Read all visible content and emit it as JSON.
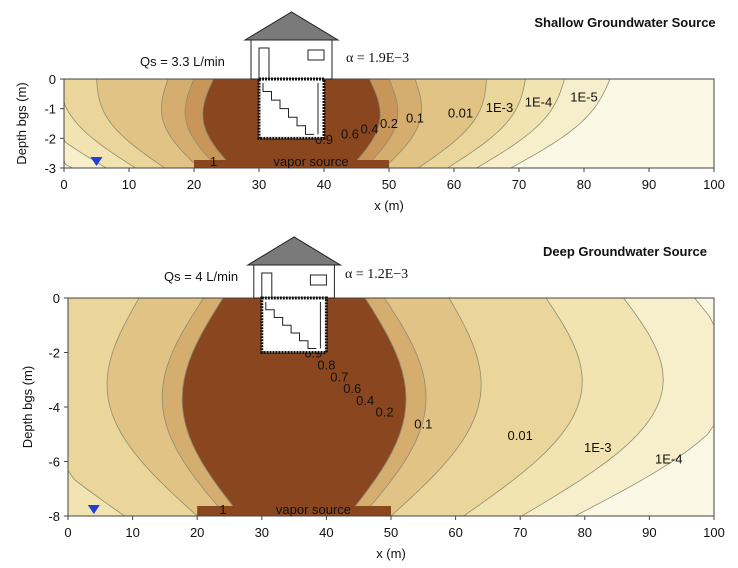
{
  "colors": {
    "ramp": [
      "#fbf8e6",
      "#f7efcb",
      "#f2e4b2",
      "#ead59a",
      "#e1c385",
      "#d5ad6e",
      "#c9965a",
      "#bb8048",
      "#ab6b38",
      "#985429",
      "#8a471f"
    ],
    "contour_line": "#8d8d72",
    "house_stroke": "#222222",
    "roof": "#7a7a7a",
    "water_table": "#1f3fd6"
  },
  "icons": [
    "house-icon",
    "water-table-triangle-icon"
  ],
  "chart_data": [
    {
      "type": "contour",
      "title": "Shallow Groundwater Source",
      "xlabel": "x (m)",
      "ylabel": "Depth bgs (m)",
      "xlim": [
        0,
        100
      ],
      "ylim": [
        -3,
        0
      ],
      "xticks": [
        "0",
        "10",
        "20",
        "30",
        "40",
        "50",
        "60",
        "70",
        "80",
        "90",
        "100"
      ],
      "yticks": [
        "0",
        "-1",
        "-2",
        "-3"
      ],
      "annotations": {
        "qs": "Qs = 3.3 L/min",
        "alpha": "α = 1.9E−3",
        "source": "vapor source"
      },
      "source_x": [
        20,
        50
      ],
      "source_depth": -3,
      "water_table_x": 5,
      "building_x": [
        30,
        40
      ],
      "foundation_depth": -2,
      "contour_levels": [
        {
          "label": "1E-5",
          "x": 80
        },
        {
          "label": "1E-4",
          "x": 73
        },
        {
          "label": "1E-3",
          "x": 67
        },
        {
          "label": "0.01",
          "x": 61
        },
        {
          "label": "0.1",
          "x": 54
        },
        {
          "label": "0.2",
          "x": 50
        },
        {
          "label": "0.4",
          "x": 47
        },
        {
          "label": "0.6",
          "x": 44
        },
        {
          "label": "0.9",
          "x": 40
        },
        {
          "label": "1",
          "x": 23
        }
      ]
    },
    {
      "type": "contour",
      "title": "Deep Groundwater Source",
      "xlabel": "x (m)",
      "ylabel": "Depth bgs (m)",
      "xlim": [
        0,
        100
      ],
      "ylim": [
        -8,
        0
      ],
      "xticks": [
        "0",
        "10",
        "20",
        "30",
        "40",
        "50",
        "60",
        "70",
        "80",
        "90",
        "100"
      ],
      "yticks": [
        "0",
        "-2",
        "-4",
        "-6",
        "-8"
      ],
      "annotations": {
        "qs": "Qs = 4 L/min",
        "alpha": "α = 1.2E−3",
        "source": "vapor source"
      },
      "source_x": [
        20,
        50
      ],
      "source_depth": -8,
      "water_table_x": 4,
      "building_x": [
        30,
        40
      ],
      "foundation_depth": -2,
      "contour_levels": [
        {
          "label": "1E-4",
          "x": 93
        },
        {
          "label": "1E-3",
          "x": 82
        },
        {
          "label": "0.01",
          "x": 70
        },
        {
          "label": "0.1",
          "x": 55
        },
        {
          "label": "0.2",
          "x": 49
        },
        {
          "label": "0.4",
          "x": 46
        },
        {
          "label": "0.6",
          "x": 44
        },
        {
          "label": "0.7",
          "x": 42
        },
        {
          "label": "0.8",
          "x": 40
        },
        {
          "label": "0.9",
          "x": 38
        },
        {
          "label": "1",
          "x": 24
        }
      ]
    }
  ]
}
